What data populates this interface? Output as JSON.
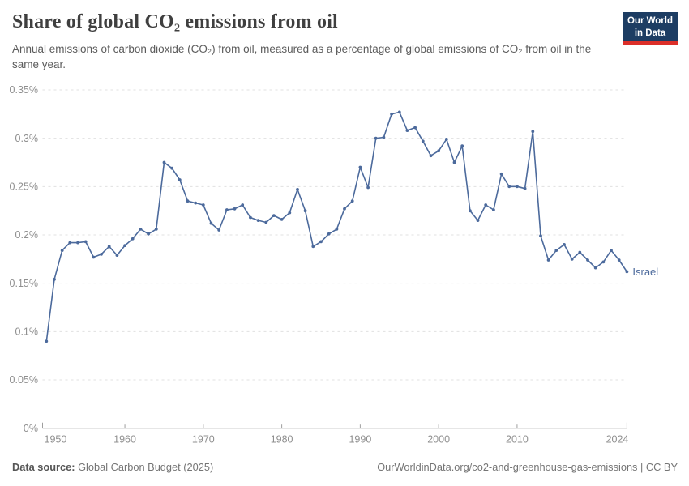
{
  "header": {
    "title": "Share of global CO₂ emissions from oil",
    "subtitle": "Annual emissions of carbon dioxide (CO₂) from oil, measured as a percentage of global emissions of CO₂ from oil in the same year.",
    "logo": {
      "line1": "Our World",
      "line2": "in Data"
    }
  },
  "chart_data": {
    "type": "line",
    "title": "Share of global CO₂ emissions from oil",
    "series_label": "Israel",
    "unit": "%",
    "grid": "horizontal-dashed",
    "legend_position": "end-of-line-label",
    "ylim": [
      0,
      0.35
    ],
    "y_ticks": [
      {
        "value": 0,
        "label": "0%"
      },
      {
        "value": 0.05,
        "label": "0.05%"
      },
      {
        "value": 0.1,
        "label": "0.1%"
      },
      {
        "value": 0.15,
        "label": "0.15%"
      },
      {
        "value": 0.2,
        "label": "0.2%"
      },
      {
        "value": 0.25,
        "label": "0.25%"
      },
      {
        "value": 0.3,
        "label": "0.3%"
      },
      {
        "value": 0.35,
        "label": "0.35%"
      }
    ],
    "x_ticks": [
      1950,
      1960,
      1970,
      1980,
      1990,
      2000,
      2010,
      2024
    ],
    "xlim": [
      1950,
      2024
    ],
    "x": [
      1950,
      1951,
      1952,
      1953,
      1954,
      1955,
      1956,
      1957,
      1958,
      1959,
      1960,
      1961,
      1962,
      1963,
      1964,
      1965,
      1966,
      1967,
      1968,
      1969,
      1970,
      1971,
      1972,
      1973,
      1974,
      1975,
      1976,
      1977,
      1978,
      1979,
      1980,
      1981,
      1982,
      1983,
      1984,
      1985,
      1986,
      1987,
      1988,
      1989,
      1990,
      1991,
      1992,
      1993,
      1994,
      1995,
      1996,
      1997,
      1998,
      1999,
      2000,
      2001,
      2002,
      2003,
      2004,
      2005,
      2006,
      2007,
      2008,
      2009,
      2010,
      2011,
      2012,
      2013,
      2014,
      2015,
      2016,
      2017,
      2018,
      2019,
      2020,
      2021,
      2022,
      2023,
      2024
    ],
    "values": [
      0.09,
      0.154,
      0.184,
      0.192,
      0.192,
      0.193,
      0.177,
      0.18,
      0.188,
      0.179,
      0.189,
      0.196,
      0.206,
      0.201,
      0.206,
      0.275,
      0.269,
      0.257,
      0.235,
      0.233,
      0.231,
      0.212,
      0.205,
      0.226,
      0.227,
      0.231,
      0.218,
      0.215,
      0.213,
      0.22,
      0.216,
      0.223,
      0.247,
      0.225,
      0.188,
      0.193,
      0.201,
      0.206,
      0.227,
      0.235,
      0.27,
      0.249,
      0.3,
      0.301,
      0.325,
      0.327,
      0.308,
      0.311,
      0.297,
      0.282,
      0.287,
      0.299,
      0.275,
      0.292,
      0.225,
      0.215,
      0.231,
      0.226,
      0.263,
      0.25,
      0.25,
      0.248,
      0.307,
      0.199,
      0.174,
      0.184,
      0.19,
      0.175,
      0.182,
      0.174,
      0.166,
      0.172,
      0.184,
      0.174,
      0.162
    ],
    "colors": {
      "line": "#4c6a9c",
      "grid": "#e0e0e0",
      "axis": "#9e9e9e",
      "tick_label": "#8f8f8f"
    }
  },
  "footer": {
    "source_label": "Data source:",
    "source_value": " Global Carbon Budget (2025)",
    "link": "OurWorldinData.org/co2-and-greenhouse-gas-emissions | CC BY"
  }
}
